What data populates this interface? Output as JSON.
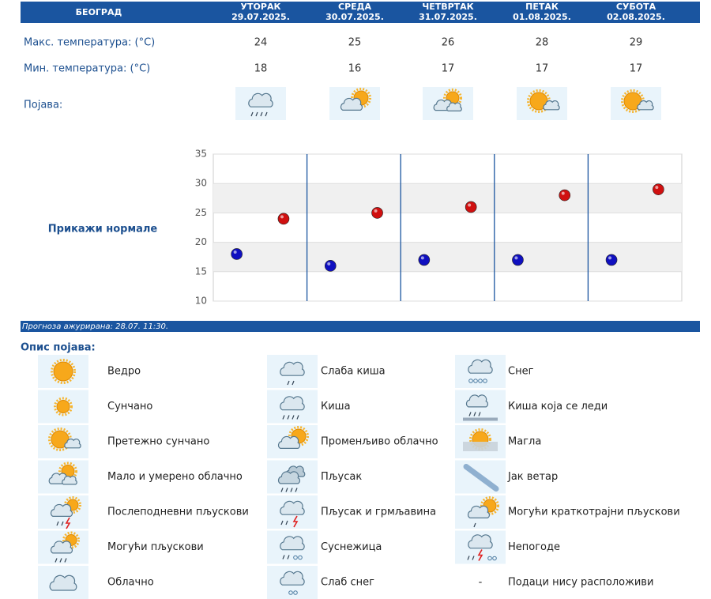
{
  "header": {
    "city": "БЕОГРАД",
    "days": [
      {
        "name": "УТОРАК",
        "date": "29.07.2025."
      },
      {
        "name": "СРЕДА",
        "date": "30.07.2025."
      },
      {
        "name": "ЧЕТВРТАК",
        "date": "31.07.2025."
      },
      {
        "name": "ПЕТАК",
        "date": "01.08.2025."
      },
      {
        "name": "СУБОТА",
        "date": "02.08.2025."
      }
    ]
  },
  "table": {
    "rows": [
      {
        "label": "Макс. температура: (°C)",
        "values": [
          24,
          25,
          26,
          28,
          29
        ]
      },
      {
        "label": "Мин. температура: (°C)",
        "values": [
          18,
          16,
          17,
          17,
          17
        ]
      }
    ],
    "phenomenon_label": "Појава:"
  },
  "show_normals": "Прикажи нормале",
  "chart_data": {
    "type": "dot",
    "categories": [
      null,
      null,
      null,
      null,
      null
    ],
    "series": [
      {
        "color": "#1010c0",
        "values": [
          18,
          16,
          17,
          17,
          17
        ]
      },
      {
        "color": "#d01010",
        "values": [
          24,
          25,
          26,
          28,
          29
        ]
      }
    ],
    "ylim": [
      10,
      35
    ],
    "yticks": [
      10,
      15,
      20,
      25,
      30,
      35
    ],
    "grid": true
  },
  "updated": "Прогноза ажурирана:  28.07. 11:30.",
  "legend": {
    "title": "Опис појава:",
    "items": [
      {
        "label": "Ведро"
      },
      {
        "label": "Сунчано"
      },
      {
        "label": "Претежно сунчано"
      },
      {
        "label": "Мало и умерено облачно"
      },
      {
        "label": "Послеподневни пљускови"
      },
      {
        "label": "Могући пљускови"
      },
      {
        "label": "Облачно"
      },
      {
        "label": "Слаба киша"
      },
      {
        "label": "Киша"
      },
      {
        "label": "Променљиво облачно"
      },
      {
        "label": "Пљусак"
      },
      {
        "label": "Пљусак и грмљавина"
      },
      {
        "label": "Суснежица"
      },
      {
        "label": "Слаб снег"
      },
      {
        "label": "Снег"
      },
      {
        "label": "Киша која се леди"
      },
      {
        "label": "Магла"
      },
      {
        "label": "Јак ветар"
      },
      {
        "label": "Могући краткотрајни пљускови"
      },
      {
        "label": "Непогоде"
      },
      {
        "symbol": "-",
        "label": "Подаци нису расположиви"
      }
    ]
  }
}
